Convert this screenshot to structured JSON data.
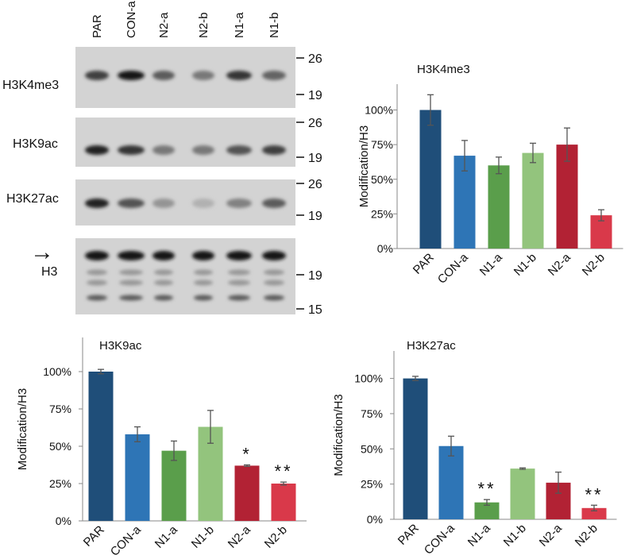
{
  "blot": {
    "lane_labels": [
      "PAR",
      "CON-a",
      "N2-a",
      "N2-b",
      "N1-a",
      "N1-b"
    ],
    "panels": [
      {
        "label": "H3K4me3",
        "markers": [
          "26",
          "19"
        ],
        "intensity": [
          0.75,
          0.95,
          0.6,
          0.45,
          0.8,
          0.55
        ]
      },
      {
        "label": "H3K9ac",
        "markers": [
          "26",
          "19"
        ],
        "intensity": [
          0.9,
          0.8,
          0.45,
          0.45,
          0.65,
          0.75
        ]
      },
      {
        "label": "H3K27ac",
        "markers": [
          "26",
          "19"
        ],
        "intensity": [
          0.9,
          0.65,
          0.3,
          0.15,
          0.4,
          0.6
        ]
      },
      {
        "label": "H3",
        "markers": [
          "19",
          "15"
        ],
        "intensity": [
          0.95,
          0.95,
          0.95,
          0.95,
          0.95,
          0.95
        ]
      }
    ],
    "arrow_glyph": "→"
  },
  "colors": {
    "PAR": "#1f4e79",
    "CON-a": "#2e75b6",
    "N1-a": "#5a9e4b",
    "N1-b": "#93c47d",
    "N2-a": "#b22234",
    "N2-b": "#d9394a"
  },
  "chart_data": [
    {
      "type": "bar",
      "title": "H3K4me3",
      "ylabel": "Modification/H3",
      "categories": [
        "PAR",
        "CON-a",
        "N1-a",
        "N1-b",
        "N2-a",
        "N2-b"
      ],
      "values": [
        100,
        67,
        60,
        69,
        75,
        24
      ],
      "errors": [
        11,
        11,
        6,
        7,
        12,
        4
      ],
      "annotations": [
        "",
        "",
        "",
        "",
        "",
        ""
      ],
      "yticks": [
        "0%",
        "25%",
        "50%",
        "75%",
        "100%"
      ],
      "ylim": [
        0,
        118
      ]
    },
    {
      "type": "bar",
      "title": "H3K9ac",
      "ylabel": "Modification/H3",
      "categories": [
        "PAR",
        "CON-a",
        "N1-a",
        "N1-b",
        "N2-a",
        "N2-b"
      ],
      "values": [
        100,
        58,
        47,
        63,
        37,
        25
      ],
      "errors": [
        1.5,
        5,
        6.5,
        11,
        0.5,
        1
      ],
      "annotations": [
        "",
        "",
        "",
        "",
        "*",
        "**"
      ],
      "yticks": [
        "0%",
        "25%",
        "50%",
        "75%",
        "100%"
      ],
      "ylim": [
        0,
        118
      ]
    },
    {
      "type": "bar",
      "title": "H3K27ac",
      "ylabel": "Modification/H3",
      "categories": [
        "PAR",
        "CON-a",
        "N1-a",
        "N1-b",
        "N2-a",
        "N2-b"
      ],
      "values": [
        100,
        52,
        12,
        36,
        26,
        8
      ],
      "errors": [
        1.5,
        7,
        2,
        0.5,
        7.5,
        2
      ],
      "annotations": [
        "",
        "",
        "**",
        "",
        "",
        "**"
      ],
      "yticks": [
        "0%",
        "25%",
        "50%",
        "75%",
        "100%"
      ],
      "ylim": [
        0,
        118
      ]
    }
  ]
}
